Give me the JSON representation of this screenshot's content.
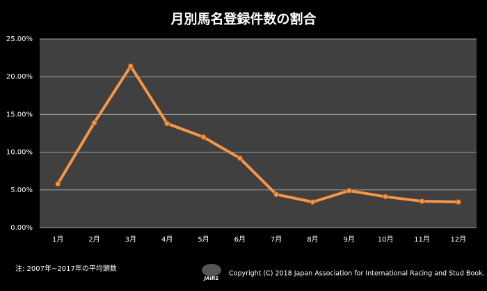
{
  "chart_data": {
    "type": "line",
    "title": "月別馬名登録件数の割合",
    "categories": [
      "1月",
      "2月",
      "3月",
      "4月",
      "5月",
      "6月",
      "7月",
      "8月",
      "9月",
      "10月",
      "11月",
      "12月"
    ],
    "series": [
      {
        "name": "割合",
        "color": "#f79646",
        "values": [
          5.8,
          13.9,
          21.4,
          13.8,
          12.0,
          9.2,
          4.4,
          3.4,
          4.9,
          4.1,
          3.5,
          3.4
        ]
      }
    ],
    "ylim": [
      0,
      25
    ],
    "yticks": [
      {
        "value": 0,
        "label": "0.00%"
      },
      {
        "value": 5,
        "label": "5.00%"
      },
      {
        "value": 10,
        "label": "10.00%"
      },
      {
        "value": 15,
        "label": "15.00%"
      },
      {
        "value": 20,
        "label": "20.00%"
      },
      {
        "value": 25,
        "label": "25.00%"
      }
    ],
    "grid": true,
    "footnote": "注: 2007年~2017年の平均頭数",
    "logo": "JAIRS",
    "copyright": "Copyright (C) 2018  Japan Association for International Racing and Stud Book."
  }
}
